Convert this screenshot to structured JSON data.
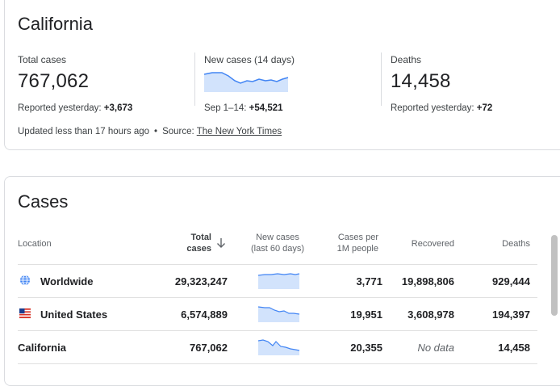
{
  "summary": {
    "title": "California",
    "total_cases": {
      "label": "Total cases",
      "value": "767,062",
      "sub_label": "Reported yesterday: ",
      "sub_value": "+3,673"
    },
    "new_cases": {
      "label": "New cases (14 days)",
      "sub_label": "Sep 1–14: ",
      "sub_value": "+54,521"
    },
    "deaths": {
      "label": "Deaths",
      "value": "14,458",
      "sub_label": "Reported yesterday: ",
      "sub_value": "+72"
    },
    "footer": {
      "updated": "Updated less than 17 hours ago",
      "separator": "•",
      "source_label": "Source: ",
      "source_link": "The New York Times"
    }
  },
  "cases": {
    "title": "Cases",
    "columns": {
      "location": "Location",
      "total_line1": "Total",
      "total_line2": "cases",
      "new_line1": "New cases",
      "new_line2": "(last 60 days)",
      "per_line1": "Cases per",
      "per_line2": "1M people",
      "recovered": "Recovered",
      "deaths": "Deaths"
    },
    "rows": [
      {
        "location": "Worldwide",
        "icon": "globe-icon",
        "total": "29,323,247",
        "per_million": "3,771",
        "recovered": "19,898,806",
        "deaths": "929,444"
      },
      {
        "location": "United States",
        "icon": "us-flag-icon",
        "total": "6,574,889",
        "per_million": "19,951",
        "recovered": "3,608,978",
        "deaths": "194,397"
      },
      {
        "location": "California",
        "icon": "",
        "total": "767,062",
        "per_million": "20,355",
        "recovered": "No data",
        "deaths": "14,458"
      }
    ]
  },
  "colors": {
    "sparkline": "#4285f4",
    "sparkline_fill": "#d2e3fc",
    "link": "#3c4043"
  }
}
